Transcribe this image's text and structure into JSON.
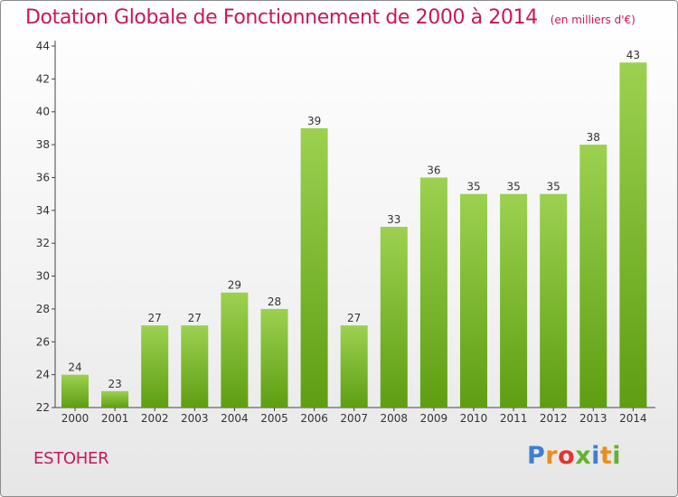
{
  "title": "Dotation Globale de Fonctionnement de 2000 à 2014",
  "subtitle": "(en milliers d'€)",
  "commune": "ESTOHER",
  "logo": {
    "text": "Proxiti",
    "colors": [
      "#3f7fd0",
      "#f08a1d",
      "#e5322d",
      "#64b32e",
      "#3f7fd0",
      "#f08a1d",
      "#64b32e"
    ]
  },
  "colors": {
    "accent": "#c8175a",
    "bar_top": "#9cd150",
    "bar_bottom": "#5e9e12"
  },
  "chart_data": {
    "type": "bar",
    "categories": [
      "2000",
      "2001",
      "2002",
      "2003",
      "2004",
      "2005",
      "2006",
      "2007",
      "2008",
      "2009",
      "2010",
      "2011",
      "2012",
      "2013",
      "2014"
    ],
    "values": [
      24,
      23,
      27,
      27,
      29,
      28,
      39,
      27,
      33,
      36,
      35,
      35,
      35,
      38,
      43
    ],
    "title": "Dotation Globale de Fonctionnement de 2000 à 2014",
    "subtitle": "(en milliers d'€)",
    "xlabel": "",
    "ylabel": "",
    "ylim": [
      22,
      44
    ],
    "yticks": [
      22,
      24,
      26,
      28,
      30,
      32,
      34,
      36,
      38,
      40,
      42,
      44
    ],
    "grid": false,
    "data_labels": true
  }
}
